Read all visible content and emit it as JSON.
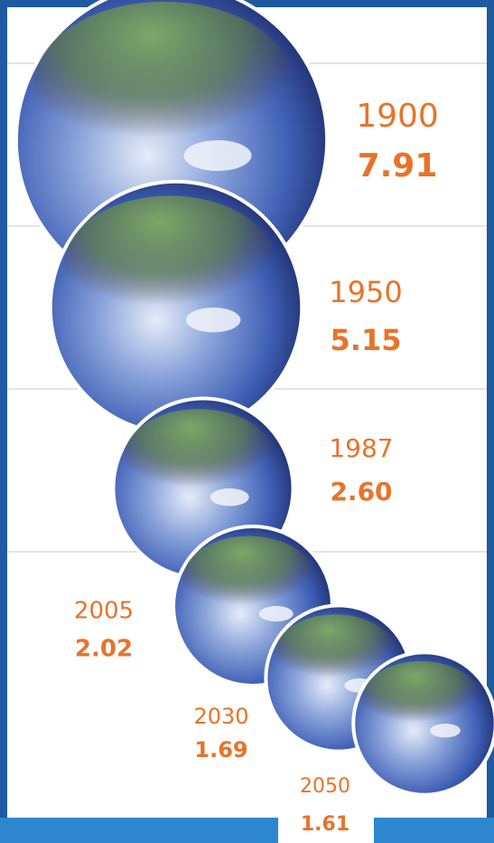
{
  "chart_data": {
    "type": "bubble",
    "categories": [
      "1900",
      "1950",
      "1987",
      "2005",
      "2030",
      "2050"
    ],
    "values": [
      7.91,
      5.15,
      2.6,
      2.02,
      1.69,
      1.61
    ],
    "value_labels": [
      "7.91",
      "5.15",
      "2.60",
      "2.02",
      "1.69",
      "1.61"
    ],
    "color": "#e8732a"
  }
}
